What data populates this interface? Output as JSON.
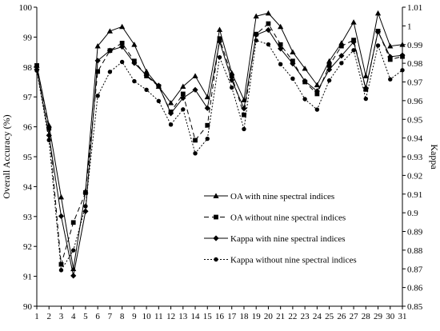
{
  "chart_data": {
    "type": "line",
    "x": [
      1,
      2,
      3,
      4,
      5,
      6,
      7,
      8,
      9,
      10,
      11,
      12,
      13,
      14,
      15,
      16,
      17,
      18,
      19,
      20,
      21,
      22,
      23,
      24,
      25,
      26,
      27,
      28,
      29,
      30,
      31
    ],
    "xticks": [
      "1",
      "2",
      "3",
      "4",
      "5",
      "6",
      "7",
      "8",
      "9",
      "10",
      "11",
      "12",
      "13",
      "14",
      "15",
      "16",
      "17",
      "18",
      "19",
      "20",
      "21",
      "22",
      "23",
      "24",
      "25",
      "26",
      "27",
      "28",
      "29",
      "30",
      "31"
    ],
    "ylabel": "Overall Accuracy (%)",
    "y2label": "Kappa",
    "ylim": [
      90,
      100
    ],
    "y2lim": [
      0.85,
      1.01
    ],
    "yticks": [
      "90",
      "91",
      "92",
      "93",
      "94",
      "95",
      "96",
      "97",
      "98",
      "99",
      "100"
    ],
    "y2ticks": [
      "0.85",
      "0.86",
      "0.87",
      "0.88",
      "0.89",
      "0.9",
      "0.91",
      "0.92",
      "0.93",
      "0.94",
      "0.95",
      "0.96",
      "0.97",
      "0.98",
      "0.99",
      "1",
      "1.01"
    ],
    "grid": false,
    "legend_position": "center-right",
    "series": [
      {
        "name": "OA with nine spectral indices",
        "axis": "left",
        "marker": "triangle",
        "dash": "solid",
        "values": [
          98.05,
          96.05,
          93.65,
          91.25,
          93.85,
          98.7,
          99.2,
          99.35,
          98.75,
          97.85,
          97.35,
          96.8,
          97.35,
          97.7,
          97.0,
          99.25,
          97.8,
          96.9,
          99.7,
          99.8,
          99.35,
          98.5,
          97.95,
          97.4,
          98.2,
          98.8,
          99.5,
          97.7,
          99.8,
          98.7,
          98.75
        ]
      },
      {
        "name": "OA without nine spectral indices",
        "axis": "left",
        "marker": "square",
        "dash": "dashed",
        "values": [
          98.05,
          95.95,
          91.4,
          92.8,
          93.8,
          97.85,
          98.55,
          98.8,
          98.2,
          97.7,
          97.35,
          96.5,
          97.1,
          95.55,
          96.05,
          98.95,
          97.7,
          96.4,
          99.1,
          99.45,
          98.75,
          98.2,
          97.5,
          97.1,
          98.05,
          98.7,
          98.9,
          97.25,
          99.2,
          98.25,
          98.35
        ]
      },
      {
        "name": "Kappa with nine spectral indices",
        "axis": "right",
        "marker": "diamond",
        "dash": "solid",
        "values": [
          0.9767,
          0.9414,
          0.8982,
          0.8663,
          0.9008,
          0.9814,
          0.9868,
          0.9888,
          0.9801,
          0.9736,
          0.9681,
          0.9532,
          0.9614,
          0.9658,
          0.956,
          0.9916,
          0.971,
          0.9558,
          0.9952,
          0.9978,
          0.9878,
          0.9798,
          0.9705,
          0.9651,
          0.9766,
          0.984,
          0.9914,
          0.9667,
          0.997,
          0.9835,
          0.9843
        ]
      },
      {
        "name": "Kappa without nine spectral indices",
        "axis": "right",
        "marker": "circle",
        "dash": "dotted",
        "values": [
          0.9761,
          0.9389,
          0.8693,
          0.8799,
          0.9035,
          0.9626,
          0.9754,
          0.9807,
          0.9704,
          0.9658,
          0.9598,
          0.9472,
          0.9553,
          0.9318,
          0.9396,
          0.9832,
          0.967,
          0.9448,
          0.9922,
          0.9901,
          0.9795,
          0.9718,
          0.9608,
          0.9552,
          0.9708,
          0.9801,
          0.987,
          0.961,
          0.9895,
          0.9714,
          0.9763
        ]
      }
    ]
  }
}
